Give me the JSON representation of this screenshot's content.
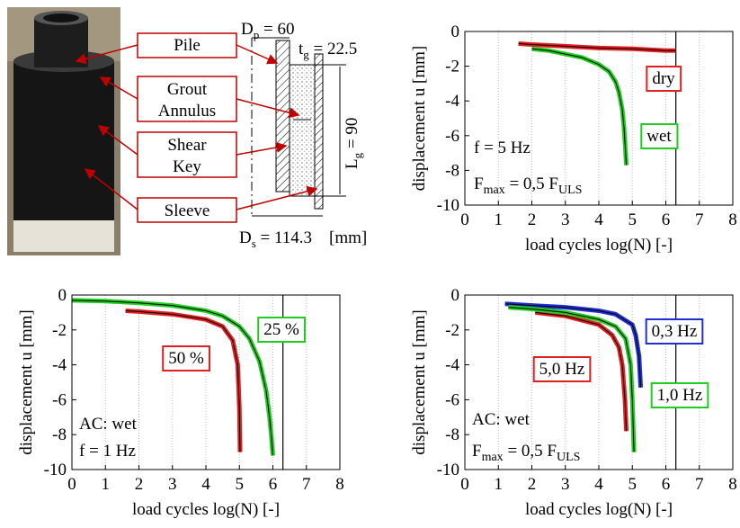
{
  "diagram": {
    "labels": [
      [
        "Pile"
      ],
      [
        "Grout",
        "Annulus"
      ],
      [
        "Shear",
        "Key"
      ],
      [
        "Sleeve"
      ]
    ],
    "dimensions": [
      {
        "symbol": "D",
        "subscript": "p",
        "text": " = 60"
      },
      {
        "symbol": "t",
        "subscript": "g",
        "text": " = 22.5"
      },
      {
        "symbol": "L",
        "subscript": "g",
        "text": " = 90"
      },
      {
        "symbol": "D",
        "subscript": "s",
        "text": " = 114.3"
      }
    ],
    "unit": "[mm]"
  },
  "chart_data": [
    {
      "type": "line",
      "xlabel": "load cycles log(N) [-]",
      "ylabel": "displacement u [mm]",
      "xlim": [
        0,
        8
      ],
      "ylim": [
        -10,
        0
      ],
      "xticks": [
        0,
        1,
        2,
        3,
        4,
        5,
        6,
        7,
        8
      ],
      "yticks": [
        0,
        -2,
        -4,
        -6,
        -8,
        -10
      ],
      "grid": true,
      "vline": 6.3,
      "series": [
        {
          "name": "dry",
          "color": "#e02020",
          "x": [
            1.6,
            2,
            3,
            4,
            5,
            6,
            6.3
          ],
          "values": [
            -0.7,
            -0.75,
            -0.85,
            -0.95,
            -1.0,
            -1.1,
            -1.1
          ]
        },
        {
          "name": "wet",
          "color": "#22cc22",
          "x": [
            2.0,
            2.5,
            3,
            3.5,
            4,
            4.3,
            4.5,
            4.6,
            4.7,
            4.75,
            4.8,
            4.82
          ],
          "values": [
            -1.0,
            -1.1,
            -1.3,
            -1.5,
            -1.9,
            -2.3,
            -2.9,
            -3.5,
            -4.5,
            -5.5,
            -7,
            -7.7
          ]
        }
      ],
      "annotations": [
        [
          "f = 5 Hz"
        ],
        [
          "F",
          {
            "sub": "max"
          },
          " = 0,5 F",
          {
            "sub": "ULS"
          }
        ]
      ]
    },
    {
      "type": "line",
      "xlabel": "load cycles log(N) [-]",
      "ylabel": "displacement u [mm]",
      "xlim": [
        0,
        8
      ],
      "ylim": [
        -10,
        0
      ],
      "xticks": [
        0,
        1,
        2,
        3,
        4,
        5,
        6,
        7,
        8
      ],
      "yticks": [
        0,
        -2,
        -4,
        -6,
        -8,
        -10
      ],
      "grid": true,
      "vline": 6.3,
      "series": [
        {
          "name": "50 %",
          "color": "#e02020",
          "x": [
            1.6,
            2,
            3,
            4,
            4.5,
            4.8,
            4.95,
            5.0,
            5.02
          ],
          "values": [
            -0.9,
            -0.95,
            -1.1,
            -1.4,
            -1.8,
            -2.6,
            -4,
            -6.5,
            -9
          ]
        },
        {
          "name": "25 %",
          "color": "#22cc22",
          "x": [
            0,
            1,
            2,
            3,
            4,
            4.5,
            5,
            5.3,
            5.6,
            5.8,
            5.9,
            5.95,
            6.0
          ],
          "values": [
            -0.3,
            -0.35,
            -0.45,
            -0.6,
            -0.9,
            -1.2,
            -1.8,
            -2.5,
            -3.8,
            -5.5,
            -7,
            -8,
            -9.2
          ]
        }
      ],
      "annotations": [
        [
          "AC: wet"
        ],
        [
          "f = 1 Hz"
        ]
      ]
    },
    {
      "type": "line",
      "xlabel": "load cycles log(N) [-]",
      "ylabel": "displacement u [mm]",
      "xlim": [
        0,
        8
      ],
      "ylim": [
        -10,
        0
      ],
      "xticks": [
        0,
        1,
        2,
        3,
        4,
        5,
        6,
        7,
        8
      ],
      "yticks": [
        0,
        -2,
        -4,
        -6,
        -8,
        -10
      ],
      "grid": true,
      "vline": 6.3,
      "series": [
        {
          "name": "0,3 Hz",
          "color": "#2030d0",
          "x": [
            1.2,
            2,
            3,
            4,
            4.5,
            5,
            5.1,
            5.2,
            5.25
          ],
          "values": [
            -0.5,
            -0.6,
            -0.7,
            -0.9,
            -1.1,
            -1.7,
            -2.3,
            -3.5,
            -5.3
          ]
        },
        {
          "name": "5,0 Hz",
          "color": "#e02020",
          "x": [
            2.1,
            3,
            4,
            4.4,
            4.6,
            4.7,
            4.78,
            4.82
          ],
          "values": [
            -1.0,
            -1.2,
            -1.7,
            -2.3,
            -3,
            -4,
            -6,
            -7.8
          ]
        },
        {
          "name": "1,0 Hz",
          "color": "#22cc22",
          "x": [
            1.3,
            2,
            3,
            4,
            4.5,
            4.8,
            4.95,
            5.0,
            5.05
          ],
          "values": [
            -0.7,
            -0.8,
            -1.0,
            -1.4,
            -1.8,
            -2.5,
            -4,
            -6,
            -9.0
          ]
        }
      ],
      "annotations": [
        [
          "AC: wet"
        ],
        [
          "F",
          {
            "sub": "max"
          },
          " = 0,5 F",
          {
            "sub": "ULS"
          }
        ]
      ]
    }
  ]
}
